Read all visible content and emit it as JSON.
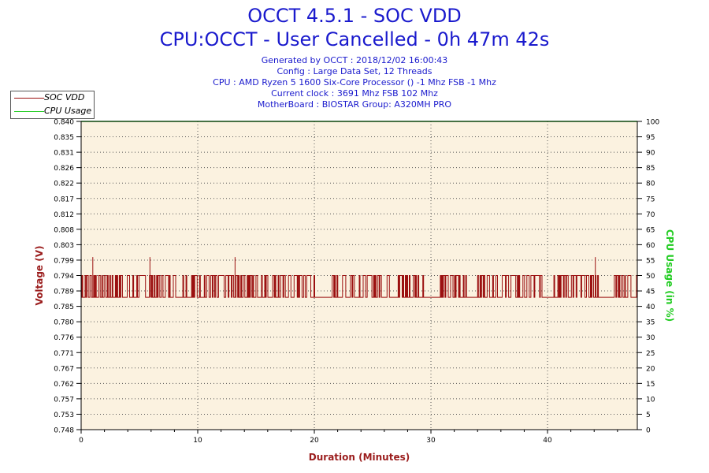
{
  "header": {
    "title": "OCCT 4.5.1 - SOC VDD",
    "subtitle": "CPU:OCCT - User Cancelled - 0h 47m 42s",
    "info_lines": [
      "Generated by OCCT : 2018/12/02 16:00:43",
      "Config : Large Data Set, 12 Threads",
      "CPU : AMD Ryzen 5 1600 Six-Core Processor () -1 Mhz FSB -1 Mhz",
      "Current clock : 3691 Mhz FSB 102 Mhz",
      "MotherBoard : BIOSTAR Group: A320MH PRO"
    ]
  },
  "colors": {
    "plot_bg": "#fbf2e0",
    "voltage_series": "#9b1010",
    "cpu_series": "#22cc22",
    "axis_left_label": "#9b1d1d",
    "axis_right_label": "#22cc22",
    "title": "#1a1acd"
  },
  "chart_data": {
    "type": "line",
    "xlabel": "Duration (Minutes)",
    "ylabel": "Voltage (V)",
    "y2label": "CPU Usage (in %)",
    "xlim": [
      0,
      47.7
    ],
    "ylim": [
      0.748,
      0.84
    ],
    "y2lim": [
      0,
      100
    ],
    "xticks": [
      "0",
      "10",
      "20",
      "30",
      "40"
    ],
    "xtick_values": [
      0,
      10,
      20,
      30,
      40
    ],
    "yticks": [
      "0.748",
      "0.753",
      "0.757",
      "0.762",
      "0.767",
      "0.771",
      "0.776",
      "0.780",
      "0.785",
      "0.789",
      "0.794",
      "0.799",
      "0.803",
      "0.808",
      "0.812",
      "0.817",
      "0.822",
      "0.826",
      "0.831",
      "0.835",
      "0.840"
    ],
    "y2ticks": [
      "0",
      "5",
      "10",
      "15",
      "20",
      "25",
      "30",
      "35",
      "40",
      "45",
      "50",
      "55",
      "60",
      "65",
      "70",
      "75",
      "80",
      "85",
      "90",
      "95",
      "100"
    ],
    "grid": true,
    "legend_position": "top-left",
    "series": [
      {
        "name": "SOC VDD",
        "axis": "left",
        "low": 0.7875,
        "high": 0.794,
        "spikes": [
          [
            1.0,
            0.7995
          ],
          [
            5.9,
            0.7995
          ],
          [
            13.2,
            0.7995
          ],
          [
            44.1,
            0.7995
          ]
        ],
        "gaps": [
          [
            20.0,
            21.5
          ],
          [
            29.6,
            30.8
          ],
          [
            33.0,
            34.0
          ],
          [
            44.3,
            45.7
          ]
        ]
      },
      {
        "name": "CPU Usage",
        "axis": "right",
        "x": [
          0,
          47.7
        ],
        "values": [
          100,
          100
        ]
      }
    ]
  }
}
